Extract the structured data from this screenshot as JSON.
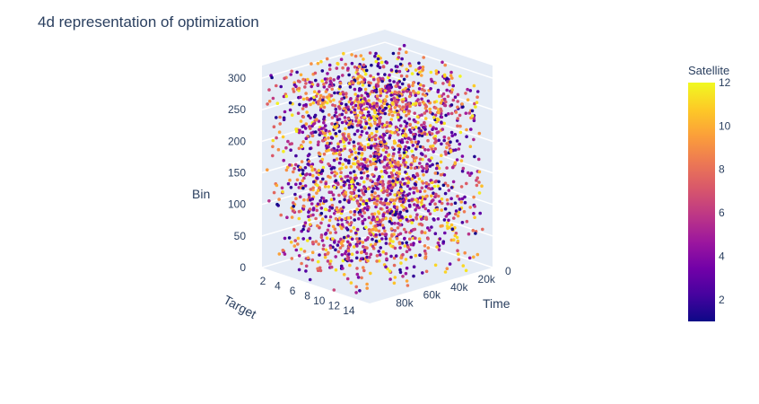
{
  "chart_data": {
    "type": "scatter",
    "subtype": "scatter3d",
    "title": "4d representation of optimization",
    "x_axis": {
      "label": "Time",
      "range": [
        0,
        90000
      ],
      "ticks": [
        {
          "value": 0,
          "label": "0"
        },
        {
          "value": 20000,
          "label": "20k"
        },
        {
          "value": 40000,
          "label": "40k"
        },
        {
          "value": 60000,
          "label": "60k"
        },
        {
          "value": 80000,
          "label": "80k"
        }
      ]
    },
    "y_axis": {
      "label": "Target",
      "range": [
        1,
        15.5
      ],
      "ticks": [
        {
          "value": 2,
          "label": "2"
        },
        {
          "value": 4,
          "label": "4"
        },
        {
          "value": 6,
          "label": "6"
        },
        {
          "value": 8,
          "label": "8"
        },
        {
          "value": 10,
          "label": "10"
        },
        {
          "value": 12,
          "label": "12"
        },
        {
          "value": 14,
          "label": "14"
        }
      ]
    },
    "z_axis": {
      "label": "Bin",
      "range": [
        0,
        320
      ],
      "ticks": [
        {
          "value": 0,
          "label": "0"
        },
        {
          "value": 50,
          "label": "50"
        },
        {
          "value": 100,
          "label": "100"
        },
        {
          "value": 150,
          "label": "150"
        },
        {
          "value": 200,
          "label": "200"
        },
        {
          "value": 250,
          "label": "250"
        },
        {
          "value": 300,
          "label": "300"
        }
      ]
    },
    "colorbar": {
      "title": "Satellite",
      "range": [
        1,
        12
      ],
      "ticks": [
        {
          "value": 2,
          "label": "2"
        },
        {
          "value": 4,
          "label": "4"
        },
        {
          "value": 6,
          "label": "6"
        },
        {
          "value": 8,
          "label": "8"
        },
        {
          "value": 10,
          "label": "10"
        },
        {
          "value": 12,
          "label": "12"
        }
      ],
      "colorscale": [
        "#0d0887",
        "#46039f",
        "#7201a8",
        "#9c179e",
        "#bd3786",
        "#d8576b",
        "#ed7953",
        "#fb9f3a",
        "#fdca26",
        "#f0f921"
      ]
    },
    "grid": true,
    "point_count_approx": 2400,
    "point_distribution": "dense uniform cloud of points filling the Time×Target×Bin box; colors span the full Satellite range"
  }
}
